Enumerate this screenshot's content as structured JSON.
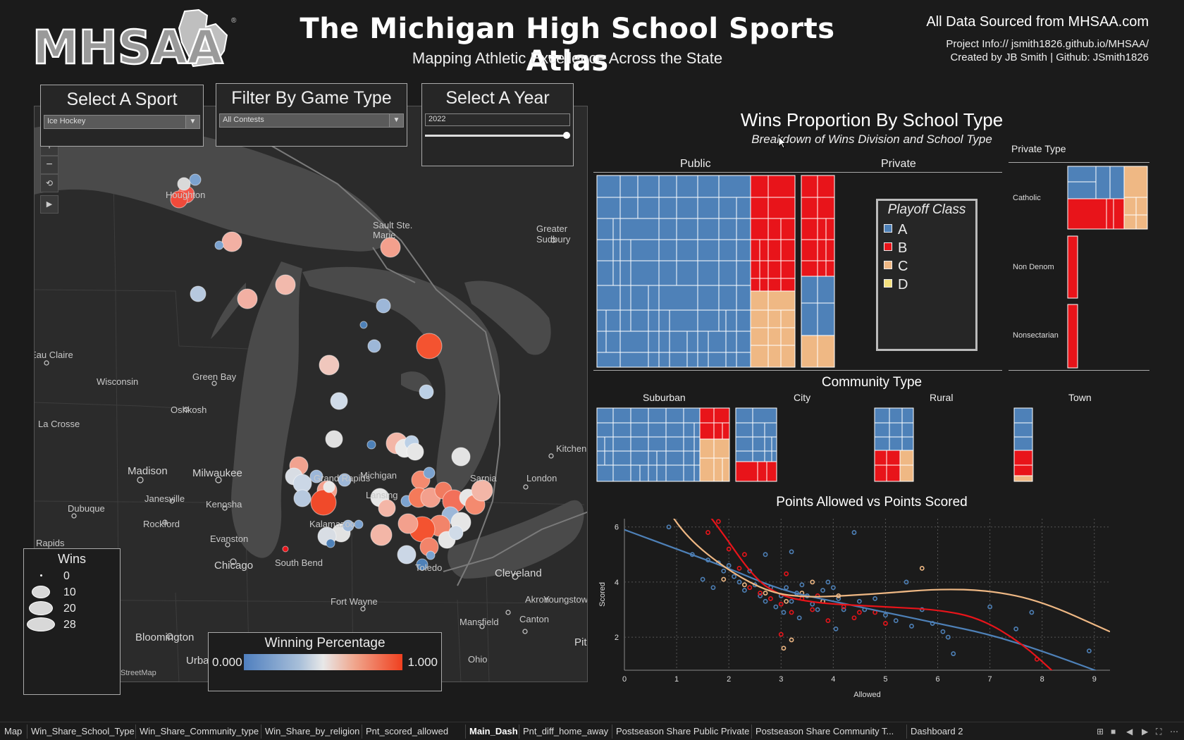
{
  "header": {
    "logo_text": "MHSAA",
    "title": "The Michigan High School Sports Atlas",
    "subtitle": "Mapping Athletic Excellence Across the State",
    "source": "All Data Sourced from MHSAA.com",
    "project_info": "Project Info:// jsmith1826.github.io/MHSAA/",
    "created_by": "Created by JB Smith | Github: JSmith1826"
  },
  "filters": {
    "sport": {
      "label": "Select A Sport",
      "value": "Ice Hockey"
    },
    "game_type": {
      "label": "Filter By Game Type",
      "value": "All Contests"
    },
    "year": {
      "label": "Select A Year",
      "value": "2022",
      "slider_fraction": 1.0
    }
  },
  "map": {
    "labels": {
      "houghton": "Houghton",
      "sault": "Sault Ste. Marie",
      "greater_sudbury": "Greater Sudbury",
      "eau_claire": "Eau Claire",
      "wisconsin": "Wisconsin",
      "green_bay": "Green Bay",
      "oshkosh": "Oshkosh",
      "la_crosse": "La Crosse",
      "madison": "Madison",
      "milwaukee": "Milwaukee",
      "janesville": "Janesville",
      "kenosha": "Kenosha",
      "dubuque": "Dubuque",
      "rockford": "Rockford",
      "rapids": "Rapids",
      "evanston": "Evanston",
      "chicago": "Chicago",
      "south_bend": "South Bend",
      "michigan": "Michigan",
      "lansing": "Lansing",
      "grand_rapids": "Grand Rapids",
      "kalamazoo": "Kalamazoo",
      "kitchener": "Kitchener",
      "london": "London",
      "sarnia": "Sarnia",
      "toledo": "Toledo",
      "cleveland": "Cleveland",
      "fort_wayne": "Fort Wayne",
      "akron": "Akron",
      "youngstown": "Youngstown",
      "mansfield": "Mansfield",
      "canton": "Canton",
      "bloomington": "Bloomington",
      "urbana": "Urbana",
      "ohio": "Ohio",
      "pittsburgh": "Pit"
    },
    "credit": "StreetMap",
    "controls": {
      "zoom_in": "+",
      "zoom_out": "−",
      "play": "▶"
    }
  },
  "wins_legend": {
    "title": "Wins",
    "items": [
      "0",
      "10",
      "20",
      "28"
    ]
  },
  "winpct_legend": {
    "title": "Winning Percentage",
    "low": "0.000",
    "high": "1.000"
  },
  "wins_proportion": {
    "title": "Wins Proportion By School Type",
    "subtitle": "Breakdown of Wins Division and School Type",
    "col_public": "Public",
    "col_private": "Private",
    "private_type_header": "Private Type",
    "private_types": [
      "Catholic",
      "Non Denom",
      "Nonsectarian"
    ]
  },
  "playoff_legend": {
    "title": "Playoff Class",
    "items": [
      {
        "label": "A",
        "color": "#4e81b8"
      },
      {
        "label": "B",
        "color": "#e8141a"
      },
      {
        "label": "C",
        "color": "#efb884"
      },
      {
        "label": "D",
        "color": "#f5e17e"
      }
    ]
  },
  "community": {
    "title": "Community Type",
    "types": [
      "Suburban",
      "City",
      "Rural",
      "Town"
    ]
  },
  "scatter": {
    "title": "Points Allowed vs Points Scored"
  },
  "chart_data": {
    "type": "scatter",
    "title": "Points Allowed vs Points Scored",
    "xlabel": "Allowed",
    "ylabel": "Scored",
    "xlim": [
      0,
      9.3
    ],
    "ylim": [
      0.8,
      6.3
    ],
    "xticks": [
      "0",
      "1",
      "2",
      "3",
      "4",
      "5",
      "6",
      "7",
      "8",
      "9"
    ],
    "yticks": [
      "2",
      "4",
      "6"
    ],
    "grid": true,
    "series": [
      {
        "class": "A",
        "color": "#4e81b8",
        "points": [
          [
            0.85,
            6.0
          ],
          [
            1.3,
            5.0
          ],
          [
            1.6,
            4.8
          ],
          [
            1.8,
            4.7
          ],
          [
            1.9,
            4.4
          ],
          [
            2.0,
            4.6
          ],
          [
            2.1,
            4.2
          ],
          [
            2.2,
            4.0
          ],
          [
            2.3,
            3.7
          ],
          [
            2.4,
            4.4
          ],
          [
            2.5,
            3.9
          ],
          [
            2.6,
            3.5
          ],
          [
            2.7,
            3.3
          ],
          [
            2.8,
            3.8
          ],
          [
            2.9,
            3.1
          ],
          [
            3.0,
            3.5
          ],
          [
            3.05,
            2.9
          ],
          [
            3.1,
            3.8
          ],
          [
            3.2,
            3.3
          ],
          [
            3.3,
            3.6
          ],
          [
            3.35,
            2.7
          ],
          [
            3.4,
            3.9
          ],
          [
            3.5,
            3.5
          ],
          [
            3.6,
            3.2
          ],
          [
            3.7,
            3.0
          ],
          [
            3.8,
            3.7
          ],
          [
            3.9,
            4.0
          ],
          [
            4.0,
            3.8
          ],
          [
            4.05,
            2.3
          ],
          [
            4.1,
            3.4
          ],
          [
            4.2,
            3.0
          ],
          [
            4.4,
            5.8
          ],
          [
            4.5,
            3.3
          ],
          [
            4.6,
            3.0
          ],
          [
            4.8,
            3.4
          ],
          [
            5.0,
            2.8
          ],
          [
            5.2,
            2.6
          ],
          [
            5.4,
            4.0
          ],
          [
            5.5,
            2.4
          ],
          [
            5.7,
            3.0
          ],
          [
            5.9,
            2.5
          ],
          [
            6.1,
            2.2
          ],
          [
            6.2,
            2.0
          ],
          [
            6.3,
            1.4
          ],
          [
            7.0,
            3.1
          ],
          [
            7.5,
            2.3
          ],
          [
            7.8,
            2.9
          ],
          [
            8.9,
            1.5
          ],
          [
            1.5,
            4.1
          ],
          [
            2.7,
            5.0
          ],
          [
            3.2,
            5.1
          ],
          [
            1.7,
            3.8
          ]
        ]
      },
      {
        "class": "B",
        "color": "#e8141a",
        "points": [
          [
            1.6,
            5.8
          ],
          [
            1.8,
            6.2
          ],
          [
            2.0,
            5.2
          ],
          [
            2.2,
            4.5
          ],
          [
            2.4,
            3.8
          ],
          [
            2.6,
            3.6
          ],
          [
            2.8,
            3.4
          ],
          [
            3.0,
            3.2
          ],
          [
            3.1,
            4.3
          ],
          [
            3.2,
            2.9
          ],
          [
            3.4,
            3.4
          ],
          [
            3.6,
            3.0
          ],
          [
            3.7,
            3.5
          ],
          [
            3.9,
            2.6
          ],
          [
            4.2,
            3.1
          ],
          [
            4.4,
            2.7
          ],
          [
            4.8,
            2.9
          ],
          [
            5.0,
            2.5
          ],
          [
            7.9,
            1.2
          ],
          [
            2.3,
            5.0
          ],
          [
            3.0,
            2.1
          ],
          [
            4.5,
            2.9
          ]
        ]
      },
      {
        "class": "C",
        "color": "#efb884",
        "points": [
          [
            1.9,
            4.1
          ],
          [
            2.3,
            3.9
          ],
          [
            2.7,
            3.6
          ],
          [
            3.1,
            3.3
          ],
          [
            3.4,
            3.6
          ],
          [
            3.6,
            4.0
          ],
          [
            3.8,
            3.3
          ],
          [
            3.2,
            1.9
          ],
          [
            3.05,
            1.6
          ],
          [
            4.1,
            3.5
          ],
          [
            5.7,
            4.5
          ]
        ]
      }
    ],
    "trend_lines": [
      {
        "class": "A",
        "color": "#4e81b8",
        "points": [
          [
            0,
            5.9
          ],
          [
            1,
            5.2
          ],
          [
            2,
            4.5
          ],
          [
            3,
            3.7
          ],
          [
            4,
            3.3
          ],
          [
            5,
            2.9
          ],
          [
            6,
            2.5
          ],
          [
            7,
            2.1
          ],
          [
            8,
            1.5
          ],
          [
            9.3,
            0.6
          ]
        ]
      },
      {
        "class": "B",
        "color": "#e8141a",
        "points": [
          [
            1.3,
            7.2
          ],
          [
            1.8,
            6.0
          ],
          [
            2.5,
            4.1
          ],
          [
            3.0,
            3.5
          ],
          [
            3.5,
            3.3
          ],
          [
            4.0,
            3.2
          ],
          [
            5.0,
            3.1
          ],
          [
            6.0,
            3.0
          ],
          [
            6.8,
            2.7
          ],
          [
            7.6,
            1.8
          ],
          [
            8.3,
            0.6
          ]
        ]
      },
      {
        "class": "C",
        "color": "#efb884",
        "points": [
          [
            0.7,
            7.0
          ],
          [
            1.2,
            5.6
          ],
          [
            2.0,
            4.4
          ],
          [
            2.8,
            3.6
          ],
          [
            3.5,
            3.45
          ],
          [
            4.2,
            3.5
          ],
          [
            5.0,
            3.6
          ],
          [
            6.0,
            3.75
          ],
          [
            7.0,
            3.7
          ],
          [
            8.0,
            3.3
          ],
          [
            9.3,
            2.2
          ]
        ]
      }
    ]
  },
  "tabs": {
    "items": [
      "Map",
      "Win_Share_School_Type",
      "Win_Share_Community_type",
      "Win_Share_by_religion",
      "Pnt_scored_allowed",
      "Main_Dash",
      "Pnt_diff_home_away",
      "Postseason Share Public Private",
      "Postseason Share Community T...",
      "Dashboard 2"
    ],
    "active": "Main_Dash"
  }
}
